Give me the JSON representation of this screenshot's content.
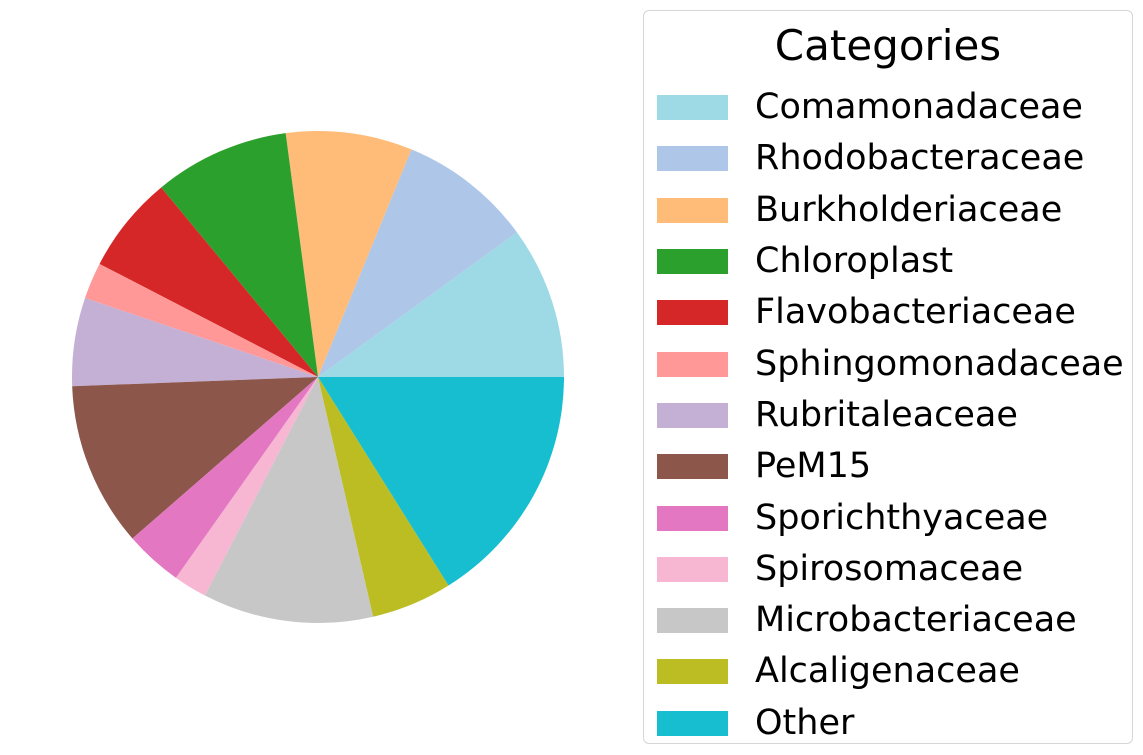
{
  "chart_data": {
    "type": "pie",
    "legend_title": "Categories",
    "legend_position": "right",
    "start_angle_deg": 0,
    "direction": "counterclockwise",
    "slices": [
      {
        "label": "Comamonadaceae",
        "value": 10.0,
        "color": "#9edae5"
      },
      {
        "label": "Rhodobacteraceae",
        "value": 8.8,
        "color": "#aec7e8"
      },
      {
        "label": "Burkholderiaceae",
        "value": 8.3,
        "color": "#ffbb78"
      },
      {
        "label": "Chloroplast",
        "value": 8.9,
        "color": "#2ca02c"
      },
      {
        "label": "Flavobacteriaceae",
        "value": 6.4,
        "color": "#d62728"
      },
      {
        "label": "Sphingomonadaceae",
        "value": 2.4,
        "color": "#ff9896"
      },
      {
        "label": "Rubritaleaceae",
        "value": 5.8,
        "color": "#c5b0d5"
      },
      {
        "label": "PeM15",
        "value": 10.8,
        "color": "#8c564b"
      },
      {
        "label": "Sporichthyaceae",
        "value": 3.8,
        "color": "#e377c2"
      },
      {
        "label": "Spirosomaceae",
        "value": 2.2,
        "color": "#f7b6d2"
      },
      {
        "label": "Microbacteriaceae",
        "value": 11.2,
        "color": "#c7c7c7"
      },
      {
        "label": "Alcaligenaceae",
        "value": 5.3,
        "color": "#bcbd22"
      },
      {
        "label": "Other",
        "value": 16.1,
        "color": "#17becf"
      }
    ]
  }
}
